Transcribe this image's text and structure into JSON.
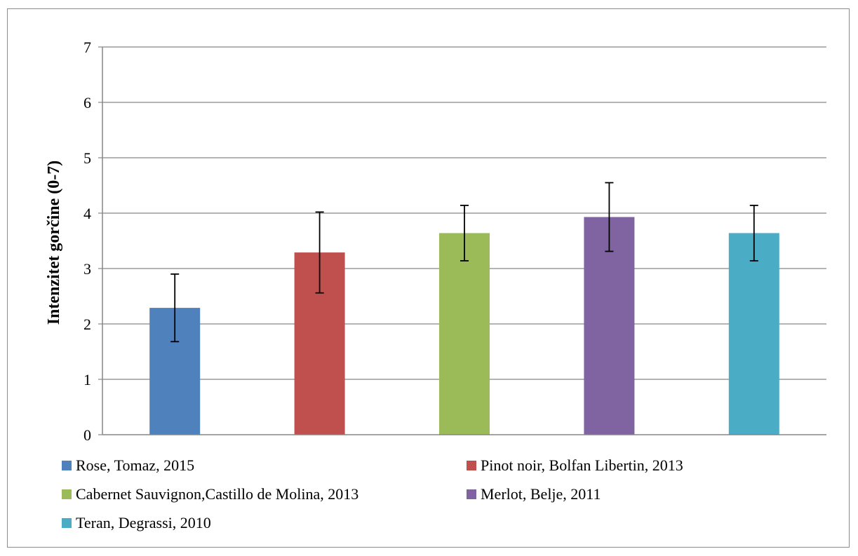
{
  "chart_data": {
    "type": "bar",
    "title": "",
    "xlabel": "",
    "ylabel": "Intenzitet gorčine (0-7)",
    "ylim": [
      0,
      7
    ],
    "yticks": [
      "0",
      "1",
      "2",
      "3",
      "4",
      "5",
      "6",
      "7"
    ],
    "grid": true,
    "legend_position": "bottom",
    "categories": [
      "Rose, Tomaz, 2015",
      "Pinot noir, Bolfan Libertin, 2013",
      "Cabernet Sauvignon,Castillo de Molina, 2013",
      "Merlot, Belje, 2011",
      "Teran, Degrassi, 2010"
    ],
    "values": [
      2.29,
      3.29,
      3.64,
      3.93,
      3.64
    ],
    "error": [
      0.61,
      0.73,
      0.5,
      0.62,
      0.5
    ],
    "colors": [
      "#4f81bd",
      "#c0504d",
      "#9bbb59",
      "#8064a2",
      "#4bacc6"
    ]
  }
}
